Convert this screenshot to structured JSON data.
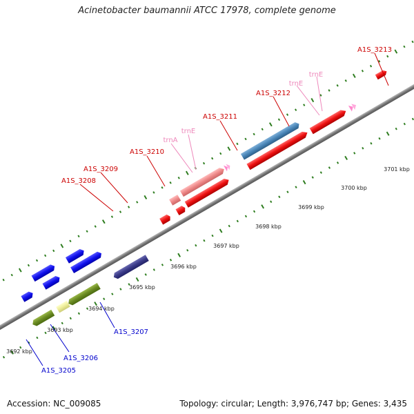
{
  "title": "Acinetobacter baumannii ATCC 17978, complete genome",
  "footer": {
    "accession": "Accession: NC_009085",
    "topology": "Topology: circular; Length: 3,976,747 bp; Genes: 3,435"
  },
  "colors": {
    "backbone": "#888888",
    "tick": "#2e7d1f",
    "label_red": "#cc0000",
    "label_pink": "#ee88bb",
    "label_blue": "#0000cc",
    "red": "#ee1111",
    "pink": "#ee8888",
    "steel": "#4a86b8",
    "blue": "#1111ee",
    "navy": "#3a3a88",
    "olive": "#6a8a22",
    "yellow": "#eeee99",
    "trna": "#ff88cc"
  },
  "scale_labels": [
    "3692 kbp",
    "3693 kbp",
    "3694 kbp",
    "3695 kbp",
    "3696 kbp",
    "3697 kbp",
    "3698 kbp",
    "3699 kbp",
    "3700 kbp",
    "3701 kbp"
  ],
  "genes_named": [
    {
      "label": "A1S_3213",
      "color": "red"
    },
    {
      "label": "A1S_3212",
      "color": "red"
    },
    {
      "label": "trnE",
      "color": "pink"
    },
    {
      "label": "trnE",
      "color": "pink"
    },
    {
      "label": "A1S_3211",
      "color": "red"
    },
    {
      "label": "trnA",
      "color": "pink"
    },
    {
      "label": "A1S_3210",
      "color": "red"
    },
    {
      "label": "A1S_3209",
      "color": "red"
    },
    {
      "label": "A1S_3208",
      "color": "red"
    },
    {
      "label": "A1S_3207",
      "color": "blue"
    },
    {
      "label": "A1S_3206",
      "color": "blue"
    },
    {
      "label": "A1S_3205",
      "color": "blue"
    }
  ]
}
